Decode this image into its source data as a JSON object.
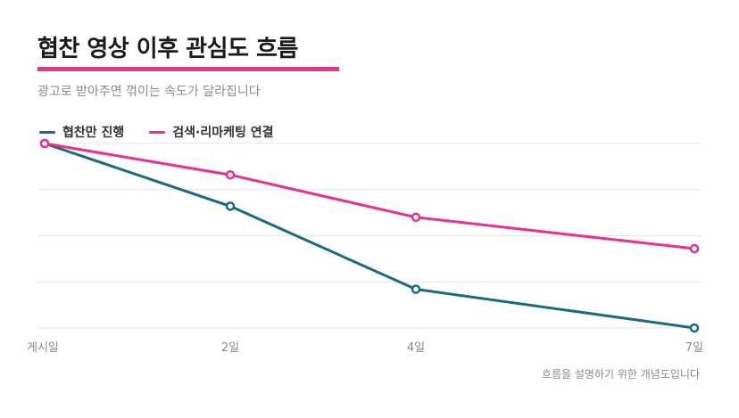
{
  "header": {
    "title": "협찬 영상 이후 관심도 흐름",
    "subtitle": "광고로 받아주면 꺾이는 속도가 달라집니다"
  },
  "footnote": "흐름을 설명하기 위한 개념도입니다",
  "colors": {
    "accent": "#e8308c",
    "series_sponsored": "#1a6b7c",
    "series_retargeting": "#e8308c",
    "grid": "#e6e6e6"
  },
  "chart_data": {
    "type": "line",
    "categories": [
      "게시일",
      "2일",
      "4일",
      "7일"
    ],
    "x": [
      0,
      2,
      4,
      7
    ],
    "xlabel": "",
    "ylabel": "",
    "ylim": [
      0,
      100
    ],
    "grid": true,
    "legend_position": "top-left",
    "series": [
      {
        "name": "협찬만 진행",
        "values": [
          100,
          66,
          21,
          0
        ]
      },
      {
        "name": "검색·리마케팅 연결",
        "values": [
          100,
          83,
          60,
          43
        ]
      }
    ]
  }
}
